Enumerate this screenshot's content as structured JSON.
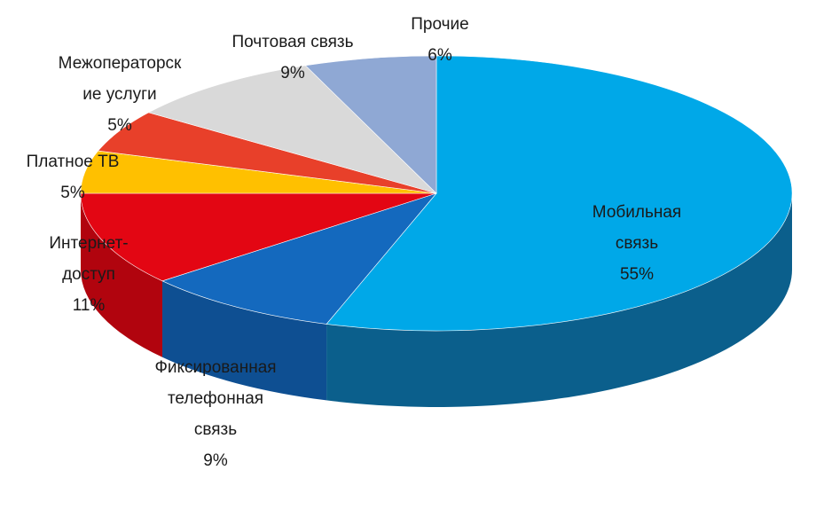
{
  "chart_data": {
    "type": "pie",
    "title": "",
    "slices": [
      {
        "label": [
          "Мобильная",
          "связь"
        ],
        "value": 55,
        "value_label": "55%",
        "color": "#00A8E8",
        "side": "#0B5F8C"
      },
      {
        "label": [
          "Фиксированная",
          "телефонная",
          "связь"
        ],
        "value": 9,
        "value_label": "9%",
        "color": "#1469BE",
        "side": "#0E4F92"
      },
      {
        "label": [
          "Интернет-",
          "доступ"
        ],
        "value": 11,
        "value_label": "11%",
        "color": "#E30613",
        "side": "#B1040E"
      },
      {
        "label": [
          "Платное ТВ"
        ],
        "value": 5,
        "value_label": "5%",
        "color": "#FFC000",
        "side": "#C99700"
      },
      {
        "label": [
          "Межоператорск",
          "ие услуги"
        ],
        "value": 5,
        "value_label": "5%",
        "color": "#E8402A",
        "side": "#B5301F"
      },
      {
        "label": [
          "Почтовая  связь"
        ],
        "value": 9,
        "value_label": "9%",
        "color": "#D9D9D9",
        "side": "#A8A8A8"
      },
      {
        "label": [
          "Прочие"
        ],
        "value": 6,
        "value_label": "6%",
        "color": "#8FA8D4",
        "side": "#6C82AC"
      }
    ],
    "start": "top",
    "direction": "clockwise",
    "style": "3d-pie"
  }
}
